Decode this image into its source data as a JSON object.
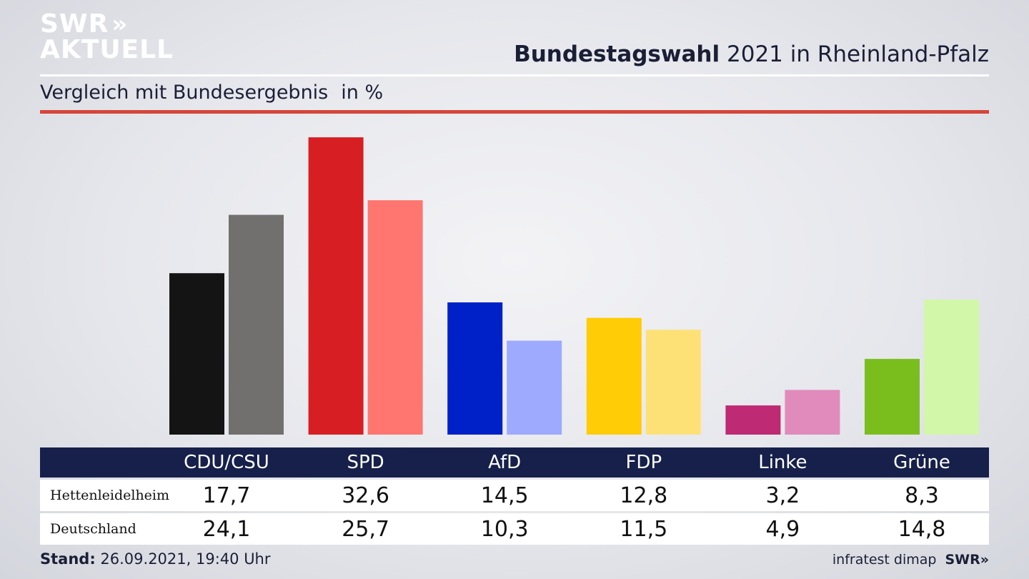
{
  "logo": {
    "line1": "SWR",
    "arrows": "»",
    "line2": "AKTUELL"
  },
  "header": {
    "title_bold": "Bundestagswahl",
    "title_rest": "2021 in Rheinland-Pfalz"
  },
  "subtitle": {
    "text": "Vergleich mit Bundesergebnis",
    "unit": "in %"
  },
  "chart_data": {
    "type": "bar",
    "categories": [
      "CDU/CSU",
      "SPD",
      "AfD",
      "FDP",
      "Linke",
      "Grüne"
    ],
    "series": [
      {
        "name": "Hettenleidelheim",
        "values": [
          17.7,
          32.6,
          14.5,
          12.8,
          3.2,
          8.3
        ],
        "colors": [
          "#141414",
          "#d71f23",
          "#0021c8",
          "#ffcc05",
          "#be2a73",
          "#7abe1e"
        ]
      },
      {
        "name": "Deutschland",
        "values": [
          24.1,
          25.7,
          10.3,
          11.5,
          4.9,
          14.8
        ],
        "colors": [
          "#72706e",
          "#ff7570",
          "#9eaafe",
          "#fde176",
          "#e08bbb",
          "#d3f7a8"
        ]
      }
    ],
    "value_labels": [
      [
        "17,7",
        "32,6",
        "14,5",
        "12,8",
        "3,2",
        "8,3"
      ],
      [
        "24,1",
        "25,7",
        "10,3",
        "11,5",
        "4,9",
        "14,8"
      ]
    ],
    "ylim": [
      0,
      33
    ],
    "grid": false,
    "legend": "table-below"
  },
  "footer": {
    "stand_label": "Stand:",
    "stand_value": "26.09.2021, 19:40 Uhr",
    "source": "infratest dimap",
    "brand": "SWR»"
  }
}
